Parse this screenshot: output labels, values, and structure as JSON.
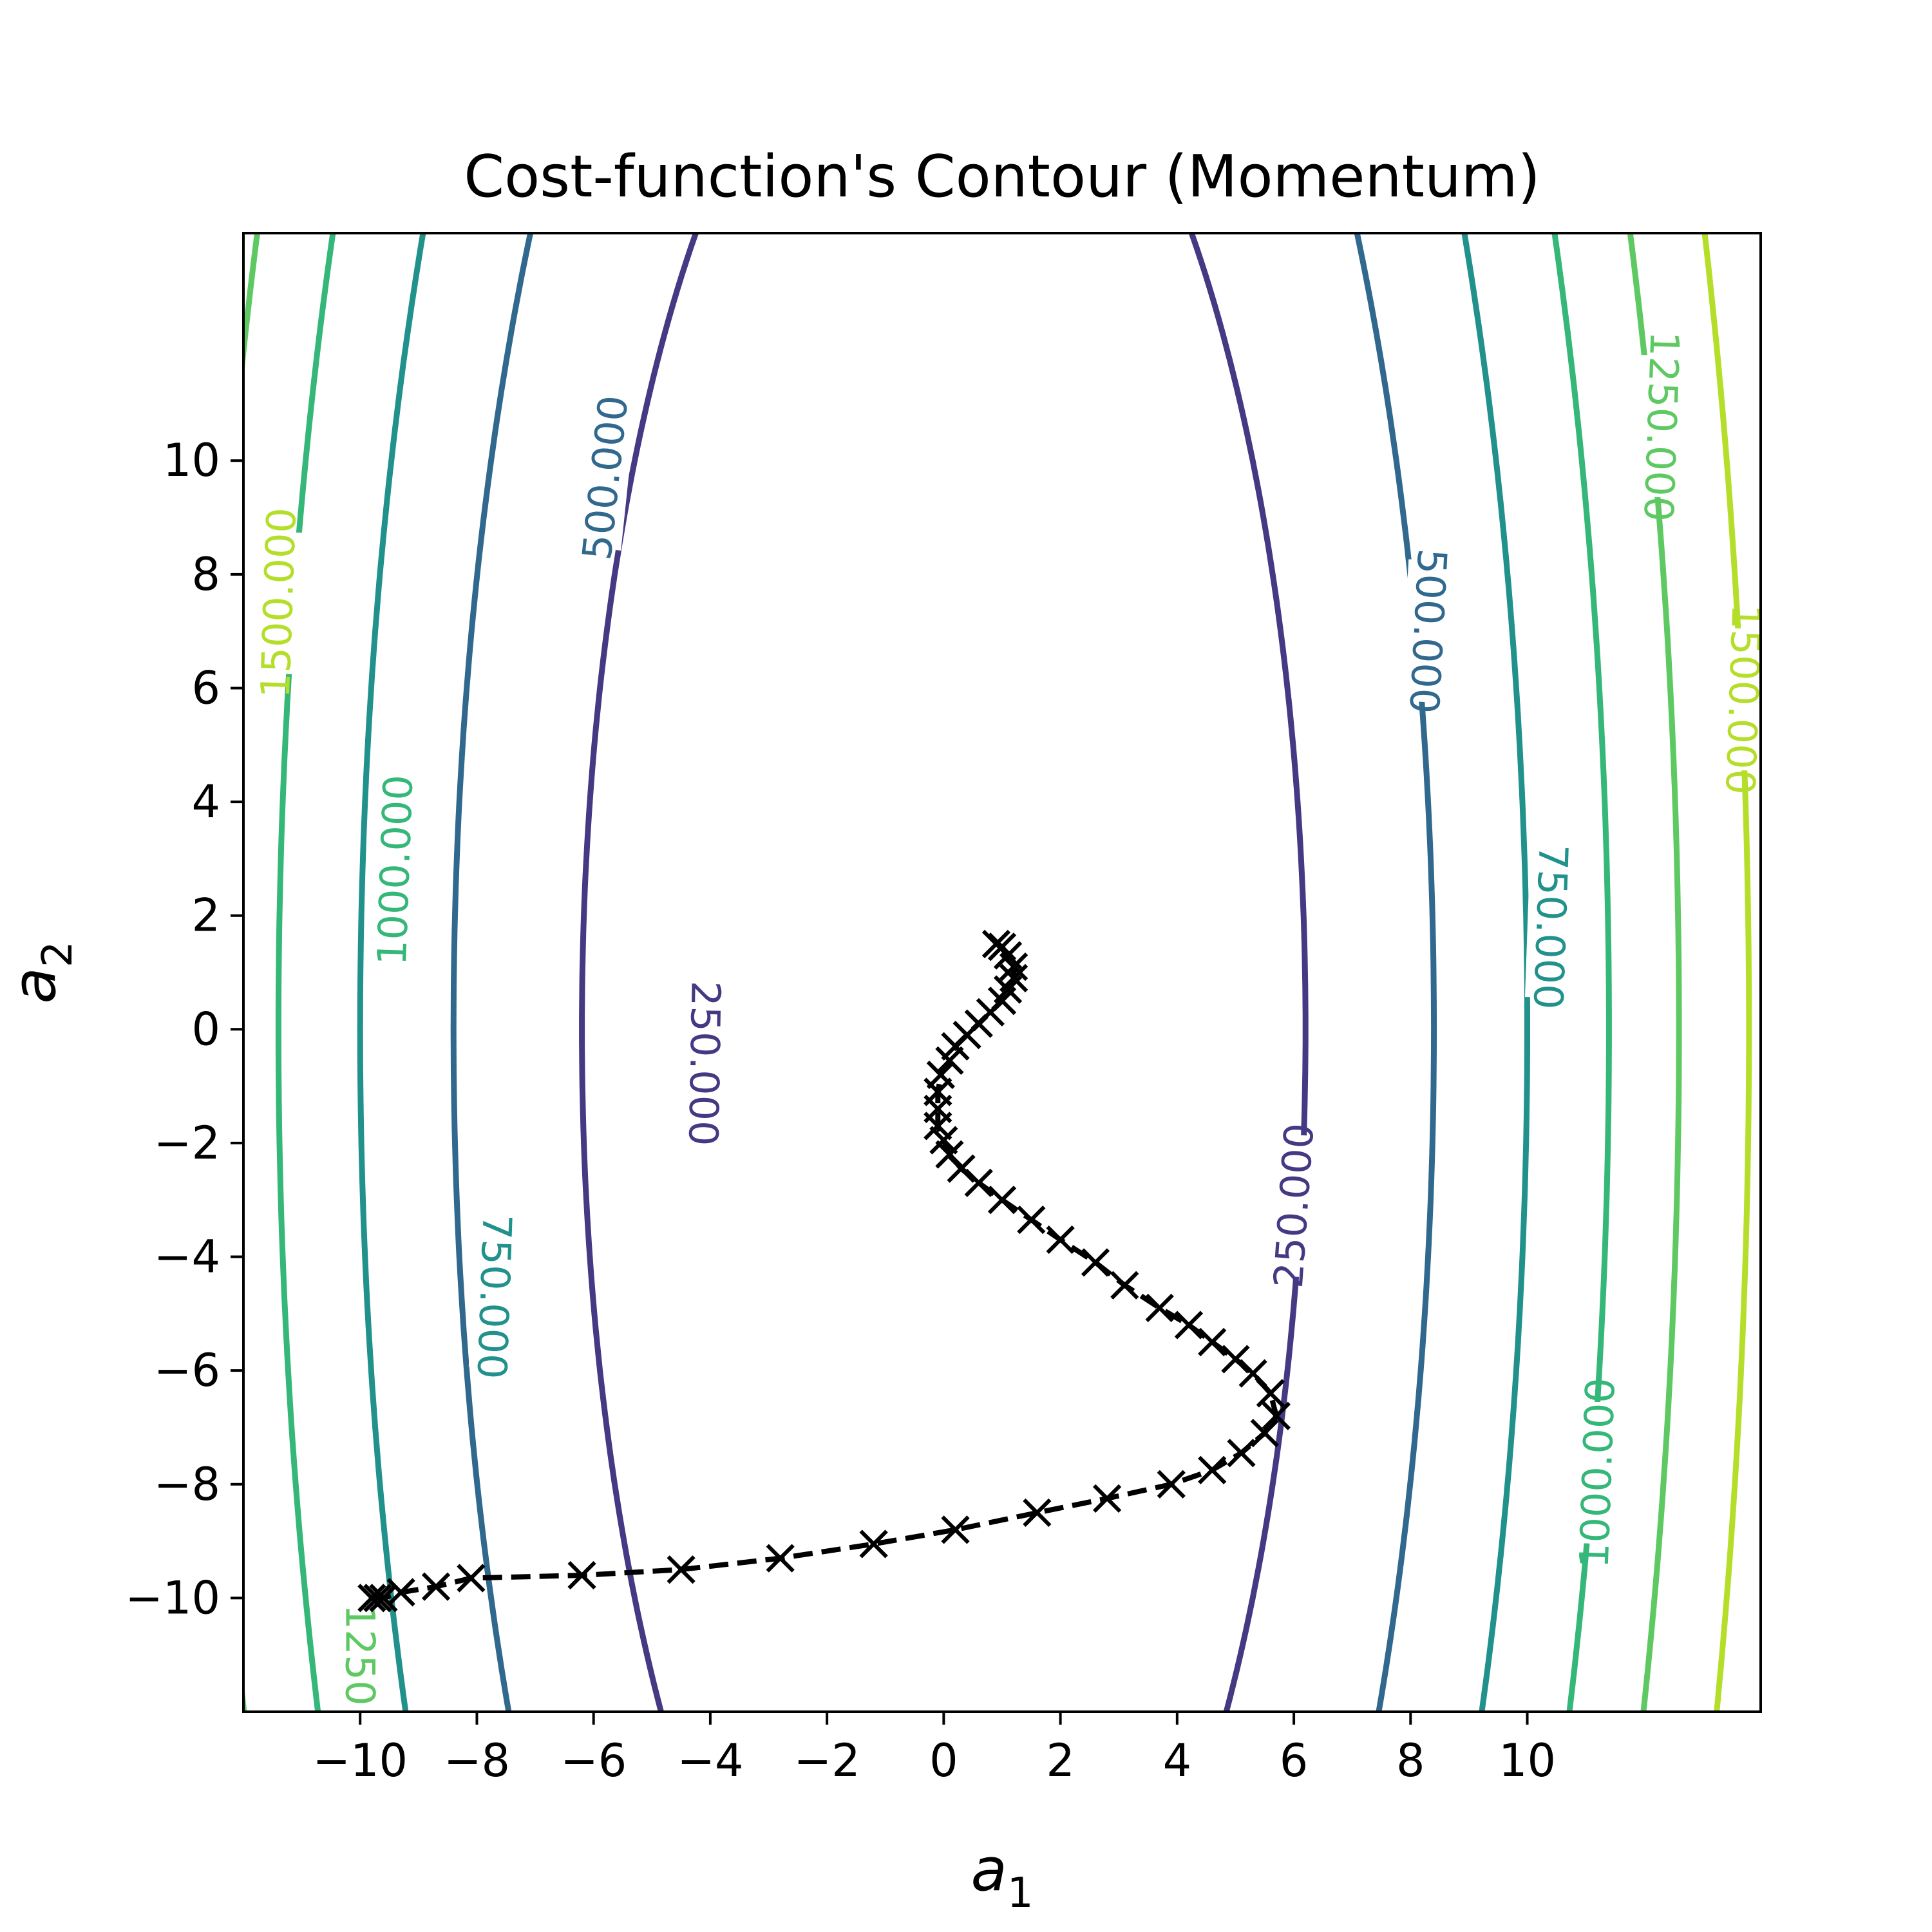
{
  "chart_data": {
    "type": "contour",
    "title": "Cost-function's Contour (Momentum)",
    "xlabel": {
      "base": "a",
      "sub": "1"
    },
    "ylabel": {
      "base": "a",
      "sub": "2"
    },
    "xlim": [
      -12,
      14
    ],
    "ylim": [
      -12,
      14
    ],
    "xticks": [
      -10,
      -8,
      -6,
      -4,
      -2,
      0,
      2,
      4,
      6,
      8,
      10
    ],
    "yticks": [
      -10,
      -8,
      -6,
      -4,
      -2,
      0,
      2,
      4,
      6,
      8,
      10
    ],
    "xtick_labels": [
      "−10",
      "−8",
      "−6",
      "−4",
      "−2",
      "0",
      "2",
      "4",
      "6",
      "8",
      "10"
    ],
    "ytick_labels": [
      "−10",
      "−8",
      "−6",
      "−4",
      "−2",
      "0",
      "2",
      "4",
      "6",
      "8",
      "10"
    ],
    "grid": false,
    "contour_levels": [
      {
        "level": 250,
        "label": "250.000",
        "color": "#443983",
        "half_width_at_center": 6.2
      },
      {
        "level": 500,
        "label": "500.000",
        "color": "#31688e",
        "half_width_at_center": 8.4
      },
      {
        "level": 750,
        "label": "750.000",
        "color": "#21918c",
        "half_width_at_center": 10.0
      },
      {
        "level": 1000,
        "label": "1000.000",
        "color": "#35b779",
        "half_width_at_center": 11.4
      },
      {
        "level": 1250,
        "label": "1250.000",
        "color": "#5ec962",
        "half_width_at_center": 12.6
      },
      {
        "level": 1500,
        "label": "1500.000",
        "color": "#b5de2b",
        "half_width_at_center": 13.8
      }
    ],
    "contour_labels": [
      {
        "text": "1500.000",
        "x": -11.4,
        "y": 7.5,
        "rotation": -88,
        "color": "#b5de2b"
      },
      {
        "text": "1500.000",
        "x": 13.7,
        "y": 5.8,
        "rotation": 92,
        "color": "#b5de2b"
      },
      {
        "text": "1250.000",
        "x": 12.3,
        "y": 10.6,
        "rotation": 92,
        "color": "#5ec962"
      },
      {
        "text": "1250",
        "x": -10.0,
        "y": -11.0,
        "rotation": 90,
        "color": "#5ec962"
      },
      {
        "text": "1000.000",
        "x": -9.4,
        "y": 2.8,
        "rotation": -88,
        "color": "#35b779"
      },
      {
        "text": "1000.000",
        "x": 11.2,
        "y": -7.8,
        "rotation": -88,
        "color": "#35b779"
      },
      {
        "text": "750.000",
        "x": -7.7,
        "y": -4.7,
        "rotation": 92,
        "color": "#21918c"
      },
      {
        "text": "750.000",
        "x": 10.4,
        "y": 1.8,
        "rotation": 92,
        "color": "#21918c"
      },
      {
        "text": "500.000",
        "x": -5.8,
        "y": 9.7,
        "rotation": -84,
        "color": "#31688e"
      },
      {
        "text": "500.000",
        "x": 8.3,
        "y": 7.0,
        "rotation": 93,
        "color": "#31688e"
      },
      {
        "text": "250.000",
        "x": -4.1,
        "y": -0.6,
        "rotation": 91,
        "color": "#443983"
      },
      {
        "text": "250.000",
        "x": 6.0,
        "y": -3.1,
        "rotation": -86,
        "color": "#443983"
      }
    ],
    "series": [
      {
        "style": "dashed-line-x-markers",
        "color": "#000000",
        "x": [
          -9.8,
          -9.7,
          -9.6,
          -9.3,
          -8.7,
          -8.1,
          -6.2,
          -4.5,
          -2.8,
          -1.2,
          0.2,
          1.6,
          2.8,
          3.9,
          4.6,
          5.1,
          5.5,
          5.7,
          5.6,
          5.3,
          5.0,
          4.6,
          4.2,
          3.7,
          3.1,
          2.6,
          2.0,
          1.5,
          1.0,
          0.6,
          0.3,
          0.1,
          0.0,
          -0.1,
          -0.1,
          -0.1,
          -0.05,
          0.1,
          0.2,
          0.4,
          0.6,
          0.8,
          1.0,
          1.1,
          1.2,
          1.2,
          1.1,
          1.0,
          0.9
        ],
        "y": [
          -10.0,
          -10.0,
          -10.0,
          -9.9,
          -9.8,
          -9.65,
          -9.6,
          -9.5,
          -9.3,
          -9.05,
          -8.8,
          -8.5,
          -8.25,
          -8.0,
          -7.75,
          -7.45,
          -7.1,
          -6.8,
          -6.4,
          -6.05,
          -5.8,
          -5.5,
          -5.2,
          -4.9,
          -4.5,
          -4.1,
          -3.7,
          -3.35,
          -3.0,
          -2.7,
          -2.45,
          -2.2,
          -1.95,
          -1.7,
          -1.4,
          -1.1,
          -0.8,
          -0.55,
          -0.3,
          -0.1,
          0.1,
          0.3,
          0.5,
          0.7,
          0.9,
          1.1,
          1.3,
          1.45,
          1.5
        ]
      }
    ]
  }
}
